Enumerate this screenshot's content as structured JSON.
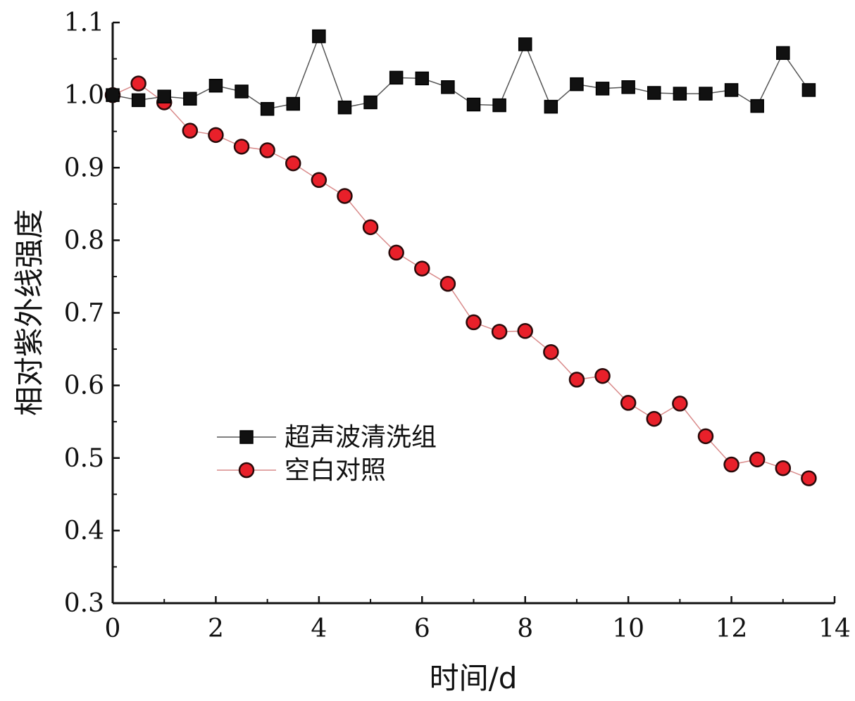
{
  "chart_data": {
    "type": "line",
    "title": "",
    "xlabel": "时间/d",
    "ylabel": "相对紫外线强度",
    "xlim": [
      0,
      14
    ],
    "ylim": [
      0.3,
      1.1
    ],
    "x_ticks": [
      0,
      2,
      4,
      6,
      8,
      10,
      12,
      14
    ],
    "y_ticks": [
      0.3,
      0.4,
      0.5,
      0.6,
      0.7,
      0.8,
      0.9,
      1.0,
      1.1
    ],
    "x_tick_labels": [
      "0",
      "2",
      "4",
      "6",
      "8",
      "10",
      "12",
      "14"
    ],
    "y_tick_labels": [
      "0.3",
      "0.4",
      "0.5",
      "0.6",
      "0.7",
      "0.8",
      "0.9",
      "1.0",
      "1.1"
    ],
    "grid": false,
    "legend_position": "center-left",
    "x": [
      0,
      0.5,
      1,
      1.5,
      2,
      2.5,
      3,
      3.5,
      4,
      4.5,
      5,
      5.5,
      6,
      6.5,
      7,
      7.5,
      8,
      8.5,
      9,
      9.5,
      10,
      10.5,
      11,
      11.5,
      12,
      12.5,
      13,
      13.5
    ],
    "series": [
      {
        "name": "超声波清洗组",
        "marker": "square",
        "color": "#111111",
        "values": [
          1.0,
          0.993,
          0.998,
          0.995,
          1.013,
          1.005,
          0.981,
          0.988,
          1.081,
          0.983,
          0.99,
          1.024,
          1.023,
          1.011,
          0.987,
          0.986,
          1.07,
          0.984,
          1.015,
          1.009,
          1.011,
          1.003,
          1.002,
          1.002,
          1.007,
          0.985,
          1.058,
          1.007
        ]
      },
      {
        "name": "空白对照",
        "marker": "circle",
        "color": "#e8202a",
        "values": [
          1.0,
          1.016,
          0.99,
          0.951,
          0.945,
          0.929,
          0.924,
          0.906,
          0.883,
          0.861,
          0.818,
          0.783,
          0.761,
          0.74,
          0.687,
          0.674,
          0.675,
          0.646,
          0.608,
          0.613,
          0.576,
          0.554,
          0.575,
          0.53,
          0.491,
          0.498,
          0.486,
          0.472
        ]
      }
    ]
  }
}
